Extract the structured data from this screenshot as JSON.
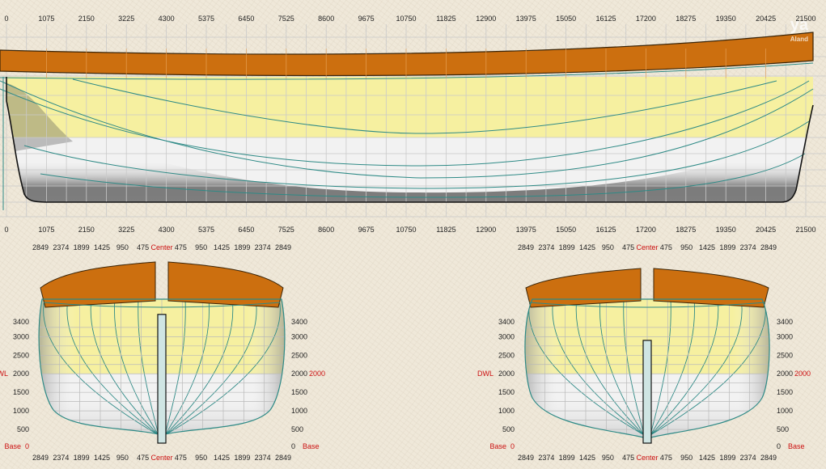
{
  "logo": {
    "mark": "ya",
    "sub": "Aland"
  },
  "profile": {
    "scale_labels": [
      "0",
      "1075",
      "2150",
      "3225",
      "4300",
      "5375",
      "6450",
      "7525",
      "8600",
      "9675",
      "10750",
      "11825",
      "12900",
      "13975",
      "15050",
      "16125",
      "17200",
      "18275",
      "19350",
      "20425",
      "21500"
    ]
  },
  "body_plans": {
    "half_breadth_labels": [
      "2849",
      "2374",
      "1899",
      "1425",
      "950",
      "475"
    ],
    "center_label": "Center",
    "height_labels": [
      "3400",
      "3000",
      "2500",
      "1500",
      "1000",
      "500"
    ],
    "dwl_label": "DWL",
    "dwl_value": "2000",
    "base_label": "Base",
    "base_value": "0"
  },
  "colors": {
    "sheer": "#cc6f0f",
    "topsides": "#f6f0a0",
    "bottom": "#f2f2f2",
    "lines": "#2e8a86",
    "grid": "#c9c9c9"
  }
}
